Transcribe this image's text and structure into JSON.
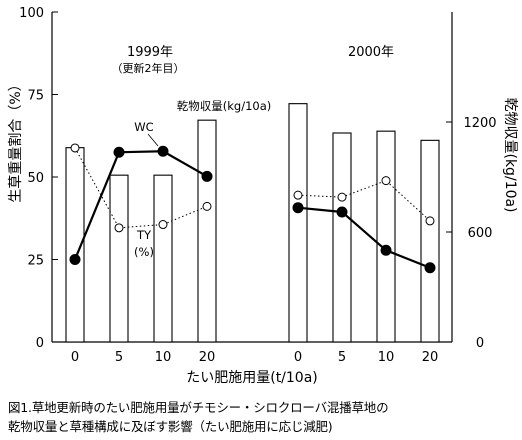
{
  "chart_data": {
    "type": "bar+line",
    "y_left": {
      "label": "生草重量割合（%）",
      "ticks": [
        "0",
        "25",
        "50",
        "75",
        "100"
      ],
      "range": [
        0,
        100
      ]
    },
    "y_right": {
      "label": "乾物収量(kg/10a)",
      "ticks": [
        "0",
        "600",
        "1200"
      ],
      "range": [
        0,
        1800
      ]
    },
    "xlabel": "たい肥施用量(t/10a)",
    "groups": [
      {
        "title": "1999年",
        "subtitle": "（更新2年目）",
        "categories": [
          "0",
          "5",
          "10",
          "20"
        ]
      },
      {
        "title": "2000年",
        "subtitle": "",
        "categories": [
          "0",
          "5",
          "10",
          "20"
        ]
      }
    ],
    "series": [
      {
        "name": "乾物収量(kg/10a)",
        "kind": "bar",
        "axis": "right",
        "values_1999": [
          1060,
          910,
          910,
          1210
        ],
        "values_2000": [
          1300,
          1140,
          1150,
          1100
        ]
      },
      {
        "name": "WC",
        "kind": "line",
        "style": "solid",
        "marker": "filled-circle",
        "axis": "left",
        "values_1999": [
          25,
          57.5,
          57.8,
          50.2
        ],
        "values_2000": [
          40.7,
          39.4,
          27.8,
          22.5
        ]
      },
      {
        "name": "TY",
        "unit_label": "(%)",
        "kind": "line",
        "style": "dotted",
        "marker": "open-circle",
        "axis": "left",
        "values_1999": [
          58.8,
          34.6,
          35.6,
          41.1
        ],
        "values_2000": [
          44.5,
          43.9,
          48.9,
          36.7
        ]
      }
    ],
    "annotations": {
      "wc_label": "WC",
      "ty_label": "TY",
      "ty_unit": "(%)",
      "bar_label": "乾物収量(kg/10a)"
    }
  },
  "caption": {
    "line1": "図1.草地更新時のたい肥施用量がチモシー・シロクローバ混播草地の",
    "line2": "乾物収量と草種構成に及ぼす影響（たい肥施用に応じ減肥)"
  }
}
